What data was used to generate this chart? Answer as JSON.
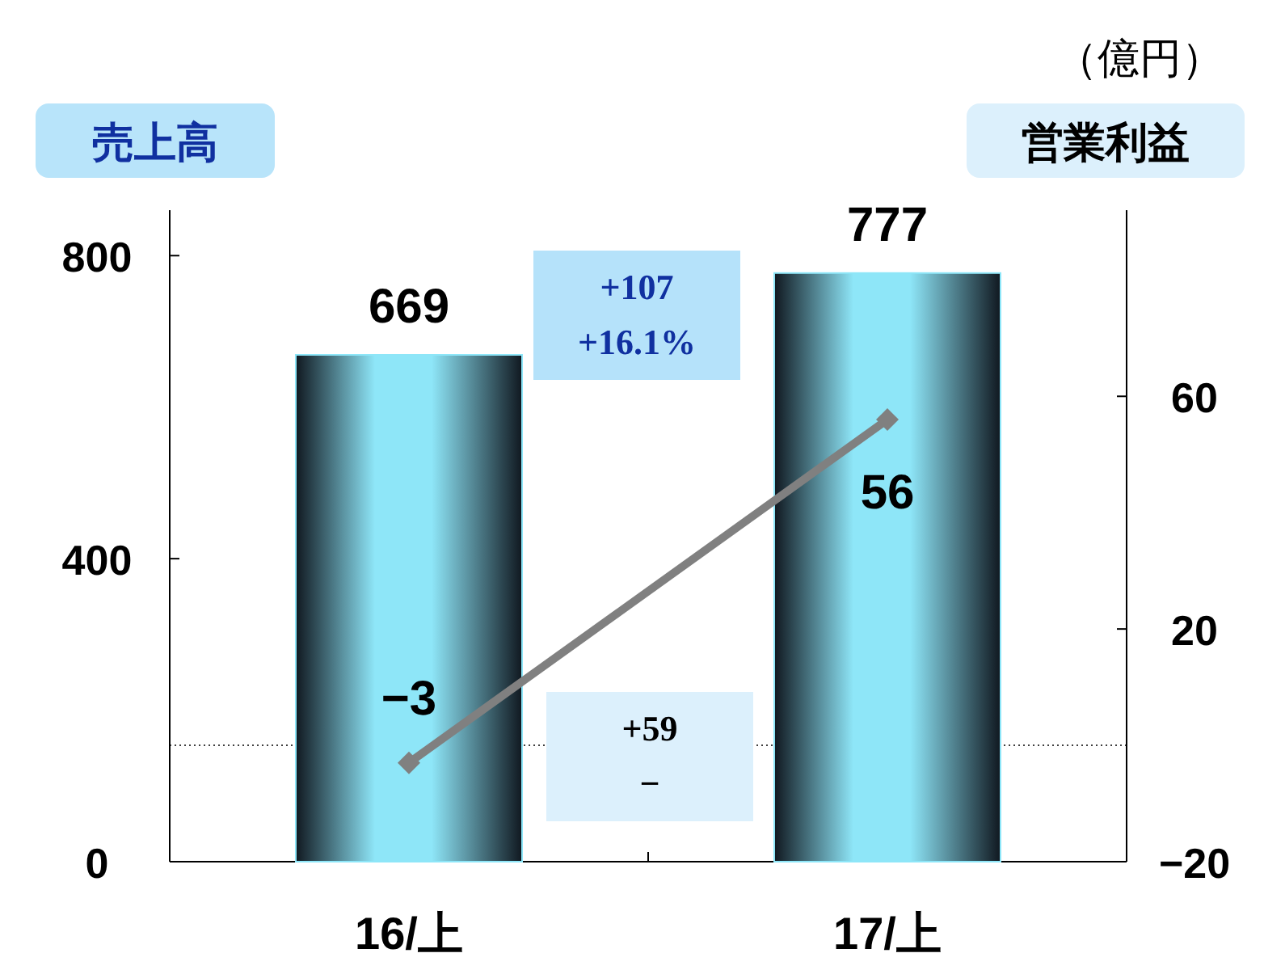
{
  "chart_data": {
    "type": "bar",
    "categories": [
      "16/上",
      "17/上"
    ],
    "ylabel": "売上高",
    "y2label": "営業利益",
    "ylim": [
      0,
      860
    ],
    "yticks": [
      0,
      400,
      800
    ],
    "y2lim": [
      -20,
      92
    ],
    "y2ticks": [
      -20,
      20,
      60
    ],
    "series": [
      {
        "type": "bar",
        "color": "#8ee6f8",
        "values": [
          669,
          777
        ]
      },
      {
        "type": "line",
        "axis": "y2",
        "color": "#808080",
        "values": [
          -3,
          56
        ]
      }
    ],
    "marker": "diamond",
    "data_labels": true,
    "grid": false,
    "ref_lines": [
      {
        "axis": "y2",
        "value": 0,
        "color": "#000000",
        "line_style": "dotted"
      }
    ],
    "annotations": [
      "（億円）",
      "+107\n+16.1%",
      "+59\n−"
    ]
  }
}
